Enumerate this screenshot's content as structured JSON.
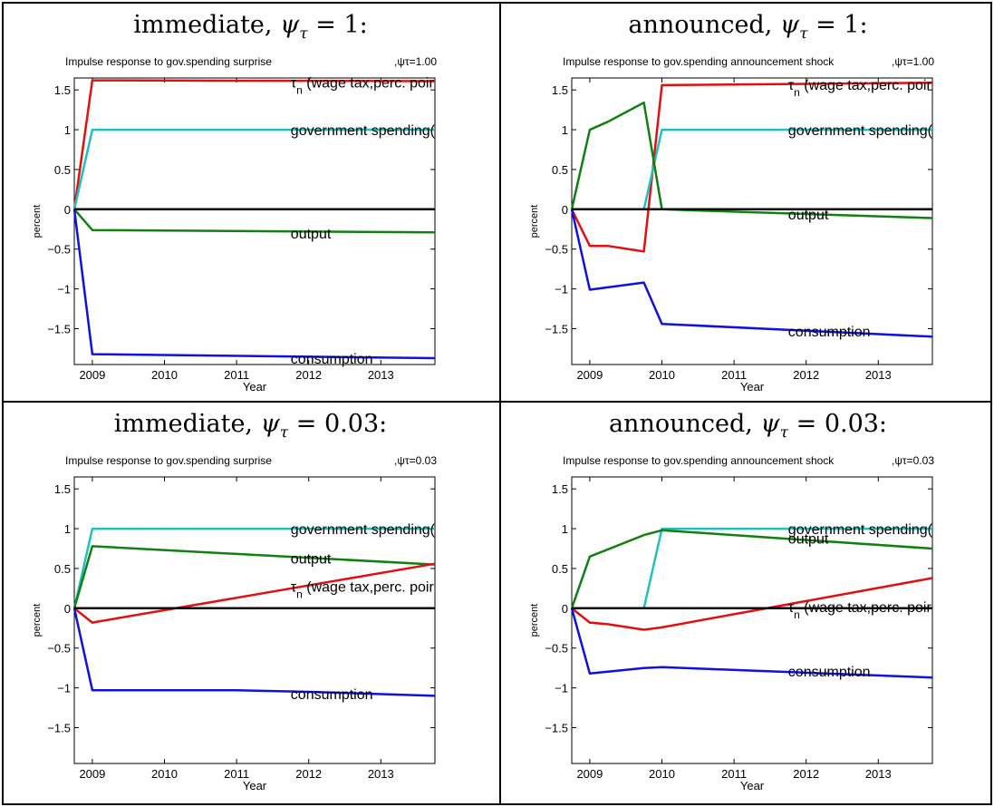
{
  "panels": [
    {
      "heading_prefix": "immediate, ",
      "psi_value": "1:"
    },
    {
      "heading_prefix": "announced, ",
      "psi_value": "1:"
    },
    {
      "heading_prefix": "immediate, ",
      "psi_value": "0.03:"
    },
    {
      "heading_prefix": "announced, ",
      "psi_value": "0.03:"
    }
  ],
  "chart_data": [
    {
      "type": "line",
      "title": "Impulse response to gov.spending surprise",
      "param_label": ",ψτ=1.00",
      "xlabel": "Year",
      "ylabel": "percent",
      "xlim": [
        2008.75,
        2013.75
      ],
      "ylim": [
        -1.95,
        1.65
      ],
      "xticks": [
        2009,
        2010,
        2011,
        2012,
        2013
      ],
      "yticks": [
        -1.5,
        -1,
        -0.5,
        0,
        0.5,
        1,
        1.5
      ],
      "series": [
        {
          "name": "τn (wage tax,perc. poir",
          "color": "#e01010",
          "x": [
            2008.75,
            2009,
            2013.75
          ],
          "y": [
            0,
            1.62,
            1.61
          ]
        },
        {
          "name": "government spending(",
          "color": "#20c0c0",
          "x": [
            2008.75,
            2009,
            2013.75
          ],
          "y": [
            0,
            1,
            1
          ]
        },
        {
          "name": "output",
          "color": "#108010",
          "x": [
            2008.75,
            2009,
            2013.75
          ],
          "y": [
            0,
            -0.26,
            -0.29
          ]
        },
        {
          "name": "consumption",
          "color": "#1010e0",
          "x": [
            2008.75,
            2009,
            2013.75
          ],
          "y": [
            0,
            -1.82,
            -1.87
          ]
        },
        {
          "name": "",
          "color": "#000000",
          "x": [
            2008.75,
            2013.75
          ],
          "y": [
            0,
            0
          ]
        }
      ],
      "annotations": [
        {
          "text": "τn (wage tax,perc. poir",
          "x": 2011.75,
          "y": 1.6
        },
        {
          "text": "government spending(",
          "x": 2011.75,
          "y": 1.0
        },
        {
          "text": "output",
          "x": 2011.75,
          "y": -0.3
        },
        {
          "text": "consumption",
          "x": 2011.75,
          "y": -1.87
        }
      ]
    },
    {
      "type": "line",
      "title": "Impulse response to gov.spending announcement shock",
      "param_label": ",ψτ=1.00",
      "xlabel": "Year",
      "ylabel": "percent",
      "xlim": [
        2008.75,
        2013.75
      ],
      "ylim": [
        -1.95,
        1.65
      ],
      "xticks": [
        2009,
        2010,
        2011,
        2012,
        2013
      ],
      "yticks": [
        -1.5,
        -1,
        -0.5,
        0,
        0.5,
        1,
        1.5
      ],
      "series": [
        {
          "name": "τn (wage tax,perc. poir",
          "color": "#e01010",
          "x": [
            2008.75,
            2009,
            2009.25,
            2009.75,
            2010,
            2013.75
          ],
          "y": [
            0,
            -0.46,
            -0.46,
            -0.53,
            1.56,
            1.59
          ]
        },
        {
          "name": "government spending(",
          "color": "#20c0c0",
          "x": [
            2008.75,
            2009.75,
            2010,
            2013.75
          ],
          "y": [
            0,
            0,
            1,
            1
          ]
        },
        {
          "name": "output",
          "color": "#108010",
          "x": [
            2008.75,
            2009,
            2009.25,
            2009.75,
            2010,
            2013.75
          ],
          "y": [
            0,
            1.0,
            1.1,
            1.34,
            0,
            -0.11
          ]
        },
        {
          "name": "consumption",
          "color": "#1010e0",
          "x": [
            2008.75,
            2009,
            2009.25,
            2009.75,
            2010,
            2013.75
          ],
          "y": [
            0,
            -1.01,
            -0.98,
            -0.92,
            -1.44,
            -1.6
          ]
        },
        {
          "name": "",
          "color": "#000000",
          "x": [
            2008.75,
            2013.75
          ],
          "y": [
            0,
            0
          ]
        }
      ],
      "annotations": [
        {
          "text": "τn (wage tax,perc. poir",
          "x": 2011.75,
          "y": 1.57
        },
        {
          "text": "government spending(",
          "x": 2011.75,
          "y": 1.0
        },
        {
          "text": "output",
          "x": 2011.75,
          "y": -0.06
        },
        {
          "text": "consumption",
          "x": 2011.75,
          "y": -1.53
        }
      ]
    },
    {
      "type": "line",
      "title": "Impulse response to gov.spending surprise",
      "param_label": ",ψτ=0.03",
      "xlabel": "Year",
      "ylabel": "percent",
      "xlim": [
        2008.75,
        2013.75
      ],
      "ylim": [
        -1.95,
        1.65
      ],
      "xticks": [
        2009,
        2010,
        2011,
        2012,
        2013
      ],
      "yticks": [
        -1.5,
        -1,
        -0.5,
        0,
        0.5,
        1,
        1.5
      ],
      "series": [
        {
          "name": "government spending(",
          "color": "#20c0c0",
          "x": [
            2008.75,
            2009,
            2013.75
          ],
          "y": [
            0,
            1,
            1
          ]
        },
        {
          "name": "output",
          "color": "#108010",
          "x": [
            2008.75,
            2009,
            2013.75
          ],
          "y": [
            0,
            0.78,
            0.55
          ]
        },
        {
          "name": "τn (wage tax,perc. poir",
          "color": "#e01010",
          "x": [
            2008.75,
            2009,
            2013.75
          ],
          "y": [
            0,
            -0.18,
            0.56
          ]
        },
        {
          "name": "consumption",
          "color": "#1010e0",
          "x": [
            2008.75,
            2009,
            2010,
            2011,
            2012,
            2013.75
          ],
          "y": [
            0,
            -1.03,
            -1.03,
            -1.03,
            -1.05,
            -1.1
          ]
        },
        {
          "name": "",
          "color": "#000000",
          "x": [
            2008.75,
            2013.75
          ],
          "y": [
            0,
            0
          ]
        }
      ],
      "annotations": [
        {
          "text": "government spending(",
          "x": 2011.75,
          "y": 1.0
        },
        {
          "text": "output",
          "x": 2011.75,
          "y": 0.63
        },
        {
          "text": "τn (wage tax,perc. poir",
          "x": 2011.75,
          "y": 0.28
        },
        {
          "text": "consumption",
          "x": 2011.75,
          "y": -1.07
        }
      ]
    },
    {
      "type": "line",
      "title": "Impulse response to gov.spending announcement shock",
      "param_label": ",ψτ=0.03",
      "xlabel": "Year",
      "ylabel": "percent",
      "xlim": [
        2008.75,
        2013.75
      ],
      "ylim": [
        -1.95,
        1.65
      ],
      "xticks": [
        2009,
        2010,
        2011,
        2012,
        2013
      ],
      "yticks": [
        -1.5,
        -1,
        -0.5,
        0,
        0.5,
        1,
        1.5
      ],
      "series": [
        {
          "name": "government spending(",
          "color": "#20c0c0",
          "x": [
            2008.75,
            2009.75,
            2010,
            2013.75
          ],
          "y": [
            0,
            0,
            1,
            1
          ]
        },
        {
          "name": "output",
          "color": "#108010",
          "x": [
            2008.75,
            2009,
            2009.75,
            2010,
            2013.75
          ],
          "y": [
            0,
            0.65,
            0.92,
            0.98,
            0.75
          ]
        },
        {
          "name": "τn (wage tax,perc. poir",
          "color": "#e01010",
          "x": [
            2008.75,
            2009,
            2009.25,
            2009.75,
            2010,
            2013.75
          ],
          "y": [
            0,
            -0.18,
            -0.2,
            -0.27,
            -0.24,
            0.38
          ]
        },
        {
          "name": "consumption",
          "color": "#1010e0",
          "x": [
            2008.75,
            2009,
            2009.75,
            2010,
            2013.75
          ],
          "y": [
            0,
            -0.82,
            -0.75,
            -0.74,
            -0.87
          ]
        },
        {
          "name": "",
          "color": "#000000",
          "x": [
            2008.75,
            2013.75
          ],
          "y": [
            0,
            0
          ]
        }
      ],
      "annotations": [
        {
          "text": "government spending(",
          "x": 2011.75,
          "y": 1.0
        },
        {
          "text": "output",
          "x": 2011.75,
          "y": 0.88
        },
        {
          "text": "τn (wage tax,perc. poir",
          "x": 2011.75,
          "y": 0.02
        },
        {
          "text": "consumption",
          "x": 2011.75,
          "y": -0.79
        }
      ]
    }
  ]
}
